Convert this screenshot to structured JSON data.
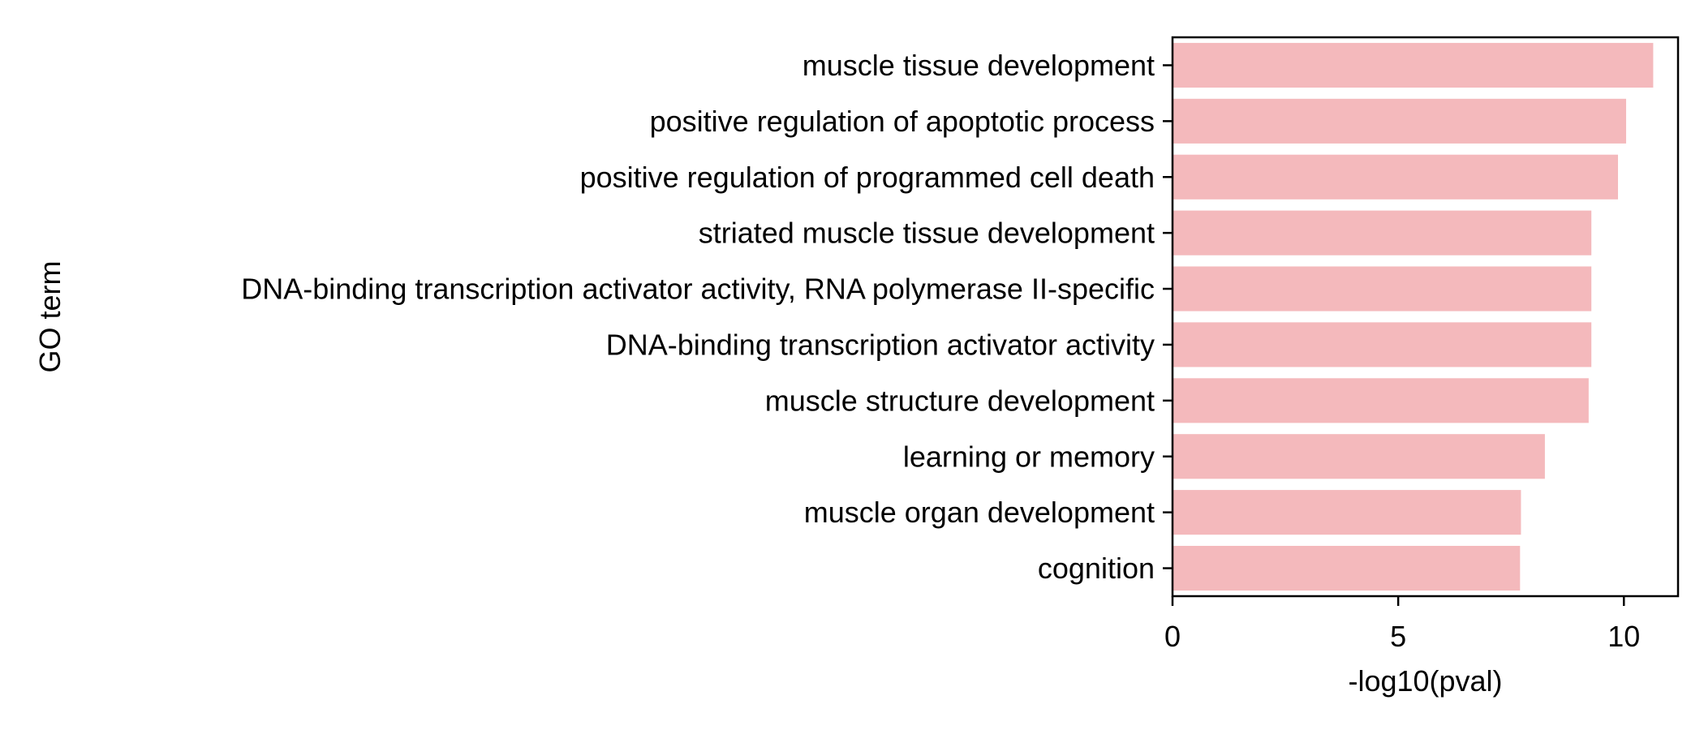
{
  "chart_data": {
    "type": "bar",
    "orientation": "horizontal",
    "xlabel": "-log10(pval)",
    "ylabel": "GO term",
    "xlim": [
      0,
      11.2
    ],
    "xticks": [
      0,
      5,
      10
    ],
    "grid": false,
    "bar_color": "#f4b9bc",
    "categories": [
      "muscle tissue development",
      "positive regulation of apoptotic process",
      "positive regulation of programmed cell death",
      "striated muscle tissue development",
      "DNA-binding transcription activator activity, RNA polymerase II-specific",
      "DNA-binding transcription activator activity",
      "muscle structure development",
      "learning or memory",
      "muscle organ development",
      "cognition"
    ],
    "values": [
      10.65,
      10.05,
      9.87,
      9.28,
      9.28,
      9.28,
      9.22,
      8.25,
      7.72,
      7.7
    ]
  }
}
